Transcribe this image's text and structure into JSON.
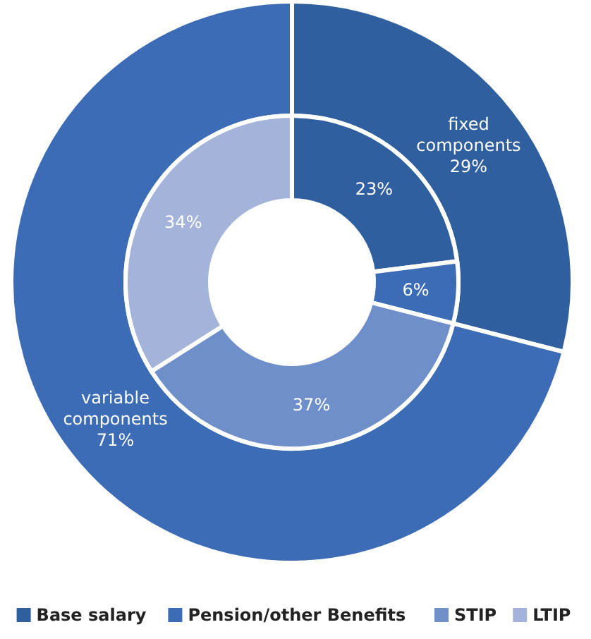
{
  "chart_data": [
    {
      "type": "donut",
      "categories": [
        "fixed components",
        "variable components"
      ],
      "values": [
        29,
        71
      ],
      "colors": [
        "#2f5f9e",
        "#3c6cb6"
      ],
      "value_labels": [
        "29%",
        "71%"
      ]
    },
    {
      "type": "donut",
      "categories": [
        "Base salary",
        "Pension/other Benefits",
        "STIP",
        "LTIP"
      ],
      "values": [
        23,
        6,
        37,
        34
      ],
      "colors": [
        "#2f5f9e",
        "#3c6cb6",
        "#6f8fcb",
        "#a3b3d9"
      ],
      "value_labels": [
        "23%",
        "6%",
        "37%",
        "34%"
      ],
      "legend": "bottom"
    }
  ]
}
